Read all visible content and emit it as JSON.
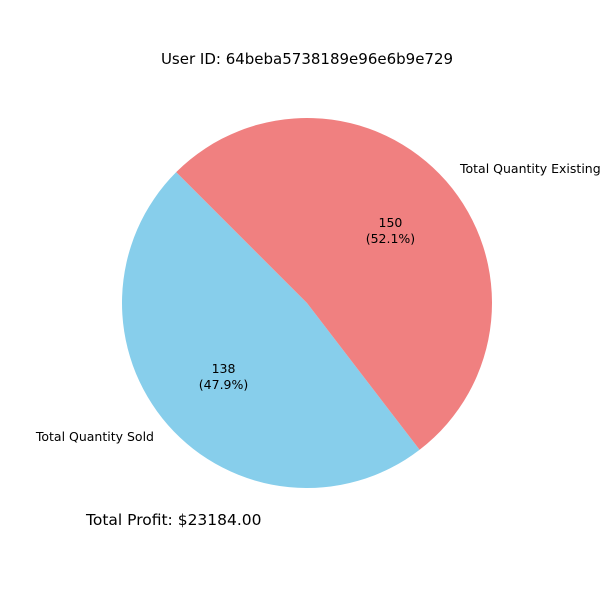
{
  "chart_data": {
    "type": "pie",
    "title": "User ID: 64beba5738189e96e6b9e729",
    "slices": [
      {
        "label": "Total Quantity Sold",
        "value": 138,
        "percent_label": "(47.9%)",
        "value_label": "138",
        "color": "#87ceeb"
      },
      {
        "label": "Total Quantity Existing",
        "value": 150,
        "percent_label": "(52.1%)",
        "value_label": "150",
        "color": "#f08080"
      }
    ],
    "legend": "none"
  },
  "footer": {
    "text": "Total Profit: $23184.00"
  }
}
